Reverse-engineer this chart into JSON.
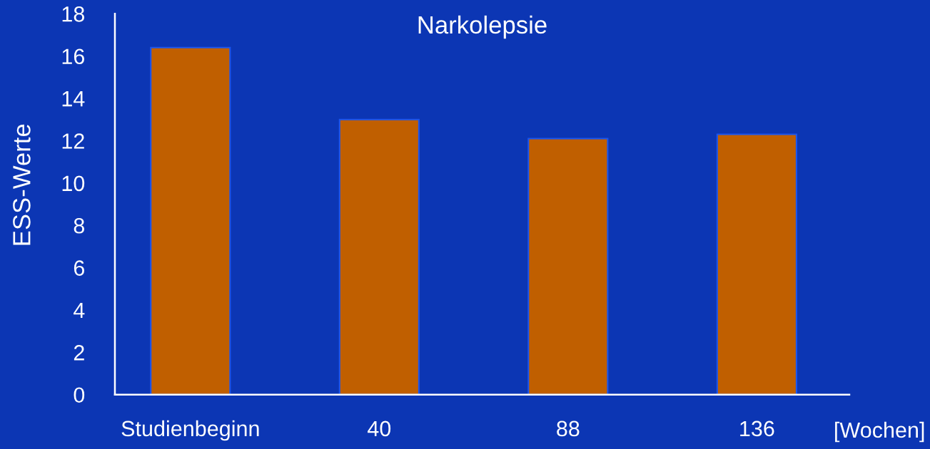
{
  "chart_data": {
    "type": "bar",
    "title": "Narkolepsie",
    "xlabel": "[Wochen]",
    "ylabel": "ESS-Werte",
    "categories": [
      "Studienbeginn",
      "40",
      "88",
      "136"
    ],
    "values": [
      16.4,
      13.0,
      12.1,
      12.3
    ],
    "color": "#c05f00",
    "ylim": [
      0,
      18
    ],
    "yticks": [
      0,
      2,
      4,
      6,
      8,
      10,
      12,
      14,
      16,
      18
    ]
  }
}
